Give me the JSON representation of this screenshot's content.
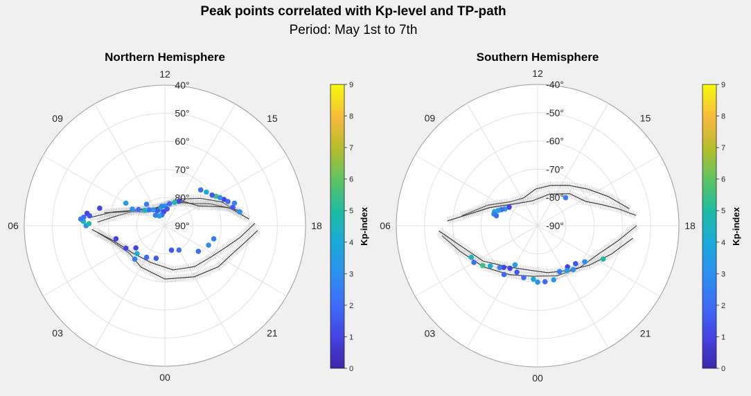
{
  "figure": {
    "title": "Peak points correlated with Kp-level and TP-path",
    "subtitle": "Period: May 1st to 7th"
  },
  "chart_data": [
    {
      "type": "scatter",
      "projection": "polar",
      "title": "Northern Hemisphere",
      "theta_tick_labels": [
        "12",
        "09",
        "06",
        "03",
        "00",
        "21",
        "18",
        "15"
      ],
      "r_tick_labels": [
        "40°",
        "50°",
        "60°",
        "70°",
        "80°",
        "90°"
      ],
      "r_range_deg": [
        40,
        90
      ],
      "grid": true,
      "colorbar": {
        "label": "Kp-index",
        "range": [
          0,
          9
        ],
        "ticks": [
          "0",
          "1",
          "2",
          "3",
          "4",
          "5",
          "6",
          "7",
          "8",
          "9"
        ],
        "colormap": "parula"
      },
      "series": [
        {
          "kind": "tp_paths",
          "points_mlt_lat": [
            [
              [
                17.5,
                62
              ],
              [
                16.5,
                68
              ],
              [
                15.5,
                74
              ],
              [
                14,
                79
              ],
              [
                12,
                83
              ],
              [
                10,
                84
              ],
              [
                8.5,
                82
              ],
              [
                7.5,
                77
              ],
              [
                6.6,
                71
              ],
              [
                6.2,
                66
              ]
            ],
            [
              [
                17.7,
                60
              ],
              [
                17,
                66
              ],
              [
                16.3,
                72
              ],
              [
                15.5,
                77
              ],
              [
                13.5,
                81
              ],
              [
                11,
                83
              ],
              [
                9,
                82
              ],
              [
                7.8,
                78
              ],
              [
                7,
                71
              ],
              [
                6.4,
                63
              ]
            ],
            [
              [
                18.2,
                57
              ],
              [
                18.8,
                61
              ],
              [
                19.5,
                64
              ],
              [
                20.5,
                66
              ],
              [
                22,
                69
              ],
              [
                0,
                71
              ],
              [
                2,
                73
              ],
              [
                3.5,
                74
              ],
              [
                5,
                70
              ],
              [
                5.6,
                66
              ]
            ],
            [
              [
                17.3,
                62
              ],
              [
                16.9,
                67
              ],
              [
                16.5,
                72
              ],
              [
                16,
                76
              ],
              [
                14.6,
                79
              ],
              [
                12.6,
                82
              ],
              [
                10.2,
                83
              ],
              [
                8.4,
                80
              ],
              [
                7.3,
                75
              ],
              [
                6.8,
                68
              ]
            ],
            [
              [
                17.9,
                58
              ],
              [
                18.6,
                63
              ],
              [
                19.3,
                67
              ],
              [
                20.2,
                70
              ],
              [
                21.6,
                72
              ],
              [
                23.3,
                74
              ],
              [
                1.4,
                76
              ],
              [
                3.3,
                75
              ],
              [
                4.9,
                71
              ],
              [
                5.8,
                64
              ]
            ]
          ]
        },
        {
          "kind": "peak_points",
          "points_mlt_lat_kp": [
            [
              17.0,
              65,
              1.5
            ],
            [
              16.6,
              66,
              2.0
            ],
            [
              16.4,
              67,
              1.0
            ],
            [
              16.0,
              69,
              5.5
            ],
            [
              15.8,
              70,
              1.5
            ],
            [
              15.4,
              71,
              4.0
            ],
            [
              16.8,
              64,
              2.5
            ],
            [
              16.2,
              68,
              3.0
            ],
            [
              15.0,
              72,
              2.0
            ],
            [
              17.3,
              63,
              3.0
            ],
            [
              14.0,
              80,
              1.0
            ],
            [
              13.5,
              81,
              5.0
            ],
            [
              12.8,
              82,
              2.0
            ],
            [
              12.0,
              83,
              3.5
            ],
            [
              11.4,
              83,
              2.5
            ],
            [
              10.8,
              84,
              4.0
            ],
            [
              10.2,
              84,
              1.5
            ],
            [
              9.6,
              83,
              3.0
            ],
            [
              9.0,
              82,
              2.0
            ],
            [
              8.5,
              81,
              4.5
            ],
            [
              8.1,
              79,
              2.0
            ],
            [
              7.8,
              77,
              3.0
            ],
            [
              11.7,
              85,
              1.0
            ],
            [
              11.0,
              86,
              2.0
            ],
            [
              10.0,
              86,
              3.5
            ],
            [
              9.2,
              85,
              2.5
            ],
            [
              12.5,
              84,
              1.5
            ],
            [
              6.6,
              62,
              1.0
            ],
            [
              6.4,
              61,
              2.0
            ],
            [
              6.2,
              61,
              4.5
            ],
            [
              6.0,
              62,
              3.0
            ],
            [
              6.3,
              60,
              2.5
            ],
            [
              6.1,
              63,
              5.0
            ],
            [
              6.5,
              63,
              1.5
            ],
            [
              19.0,
              72,
              2.5
            ],
            [
              19.6,
              73,
              3.0
            ],
            [
              20.5,
              75,
              2.0
            ],
            [
              22.0,
              80,
              2.0
            ],
            [
              23.0,
              81,
              1.5
            ],
            [
              1.0,
              78,
              1.5
            ],
            [
              2.0,
              77,
              2.0
            ],
            [
              3.5,
              77,
              1.0
            ],
            [
              3.0,
              76,
              4.0
            ],
            [
              4.0,
              74,
              1.0
            ],
            [
              2.8,
              74,
              2.5
            ],
            [
              5.0,
              72,
              1.0
            ],
            [
              7.0,
              66,
              1.0
            ],
            [
              8.0,
              74,
              3.5
            ],
            [
              9.3,
              80,
              2.5
            ]
          ]
        }
      ]
    },
    {
      "type": "scatter",
      "projection": "polar",
      "title": "Southern Hemisphere",
      "theta_tick_labels": [
        "12",
        "09",
        "06",
        "03",
        "00",
        "21",
        "18",
        "15"
      ],
      "r_tick_labels": [
        "-40°",
        "-50°",
        "-60°",
        "-70°",
        "-80°",
        "-90°"
      ],
      "r_range_deg": [
        -40,
        -90
      ],
      "grid": true,
      "colorbar": {
        "label": "Kp-index",
        "range": [
          0,
          9
        ],
        "ticks": [
          "0",
          "1",
          "2",
          "3",
          "4",
          "5",
          "6",
          "7",
          "8",
          "9"
        ],
        "colormap": "parula"
      },
      "series": [
        {
          "kind": "tp_paths",
          "points_mlt_lat": [
            [
              [
                17.3,
                -57
              ],
              [
                16.5,
                -63
              ],
              [
                15.6,
                -68
              ],
              [
                14.5,
                -72
              ],
              [
                13.2,
                -75
              ],
              [
                11.8,
                -77
              ],
              [
                10.2,
                -79
              ],
              [
                8.7,
                -77
              ],
              [
                7.5,
                -71
              ],
              [
                6.5,
                -63
              ]
            ],
            [
              [
                18.0,
                -55
              ],
              [
                18.7,
                -61
              ],
              [
                19.6,
                -66
              ],
              [
                21.0,
                -69
              ],
              [
                22.6,
                -71
              ],
              [
                0.4,
                -72
              ],
              [
                2.0,
                -70
              ],
              [
                3.5,
                -66
              ],
              [
                4.8,
                -61
              ],
              [
                5.6,
                -56
              ]
            ],
            [
              [
                17.6,
                -55
              ],
              [
                17.2,
                -61
              ],
              [
                16.8,
                -66
              ],
              [
                16.2,
                -71
              ],
              [
                15.0,
                -74
              ],
              [
                13.4,
                -78
              ],
              [
                11.2,
                -81
              ],
              [
                9.0,
                -79
              ],
              [
                7.4,
                -72
              ],
              [
                6.2,
                -58
              ]
            ],
            [
              [
                18.5,
                -56
              ],
              [
                19.4,
                -62
              ],
              [
                20.5,
                -67
              ],
              [
                21.8,
                -71
              ],
              [
                23.2,
                -73
              ],
              [
                0.8,
                -74
              ],
              [
                2.4,
                -72
              ],
              [
                3.8,
                -67
              ],
              [
                5.0,
                -62
              ],
              [
                5.8,
                -55
              ]
            ]
          ]
        },
        {
          "kind": "peak_points",
          "points_mlt_lat_kp": [
            [
              15.0,
              -76,
              2.5
            ],
            [
              8.2,
              -78,
              1.0
            ],
            [
              7.8,
              -77,
              3.0
            ],
            [
              7.6,
              -76,
              2.0
            ],
            [
              7.4,
              -75,
              3.5
            ],
            [
              7.2,
              -74,
              4.0
            ],
            [
              7.0,
              -74,
              2.5
            ],
            [
              6.9,
              -75,
              2.0
            ],
            [
              20.5,
              -69,
              3.0
            ],
            [
              19.8,
              -64,
              5.0
            ],
            [
              21.4,
              -70,
              3.0
            ],
            [
              21.0,
              -71,
              1.5
            ],
            [
              21.6,
              -72,
              1.0
            ],
            [
              22.3,
              -72,
              2.5
            ],
            [
              21.8,
              -71,
              3.5
            ],
            [
              22.9,
              -70,
              3.5
            ],
            [
              23.5,
              -70,
              2.0
            ],
            [
              0.0,
              -70,
              3.0
            ],
            [
              0.3,
              -71,
              4.0
            ],
            [
              1.0,
              -71,
              2.0
            ],
            [
              1.6,
              -72,
              1.5
            ],
            [
              2.0,
              -74,
              3.5
            ],
            [
              2.2,
              -72,
              1.0
            ],
            [
              2.6,
              -71,
              1.0
            ],
            [
              2.3,
              -69,
              2.0
            ],
            [
              2.8,
              -70,
              2.5
            ],
            [
              3.3,
              -68,
              4.0
            ],
            [
              3.6,
              -66,
              5.5
            ],
            [
              4.0,
              -64,
              2.0
            ],
            [
              4.3,
              -64,
              4.5
            ]
          ]
        }
      ]
    }
  ]
}
